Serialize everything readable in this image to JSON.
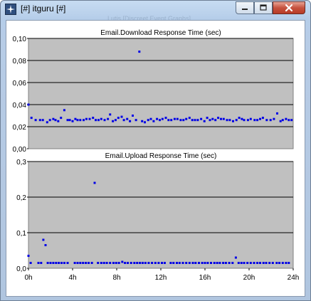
{
  "window": {
    "title": "[#] itguru [#]",
    "ghost_title": "Lutis [Discreet Event Graphs]"
  },
  "icons": {
    "app": "network-star-icon",
    "minimize": "minimize-icon",
    "maximize": "maximize-icon",
    "close": "close-icon"
  },
  "colors": {
    "plot_bg": "#c0c0c0",
    "marker": "#0000e6",
    "grid": "#000000"
  },
  "chart_data": [
    {
      "type": "scatter",
      "title": "Email.Download Response Time (sec)",
      "xlim": [
        0,
        24
      ],
      "ylim": [
        0,
        0.1
      ],
      "yticks": [
        0.0,
        0.02,
        0.04,
        0.06,
        0.08,
        0.1
      ],
      "ytick_labels": [
        "0,00",
        "0,02",
        "0,04",
        "0,06",
        "0,08",
        "0,10"
      ],
      "grid": true,
      "series": [
        {
          "x": [
            0.0,
            0.27,
            0.65,
            1.05,
            1.3,
            1.7,
            1.95,
            2.25,
            2.45,
            2.7,
            2.95,
            3.25,
            3.55,
            3.75,
            4.0,
            4.25,
            4.45,
            4.7,
            5.0,
            5.25,
            5.55,
            5.85,
            6.1,
            6.35,
            6.6,
            6.9,
            7.2,
            7.4,
            7.65,
            7.9,
            8.15,
            8.45,
            8.65,
            8.95,
            9.2,
            9.45,
            9.75,
            10.05,
            10.3,
            10.55,
            10.85,
            11.1,
            11.35,
            11.65,
            11.9,
            12.15,
            12.45,
            12.7,
            12.95,
            13.25,
            13.5,
            13.8,
            14.05,
            14.3,
            14.6,
            14.85,
            15.1,
            15.35,
            15.65,
            15.95,
            16.2,
            16.45,
            16.7,
            16.95,
            17.2,
            17.45,
            17.7,
            18.0,
            18.25,
            18.55,
            18.85,
            19.1,
            19.35,
            19.55,
            19.9,
            20.15,
            20.5,
            20.75,
            21.0,
            21.25,
            21.6,
            21.95,
            22.25,
            22.55,
            22.85,
            23.05,
            23.35,
            23.6,
            23.85
          ],
          "y": [
            0.04,
            0.028,
            0.026,
            0.026,
            0.026,
            0.024,
            0.026,
            0.027,
            0.026,
            0.025,
            0.028,
            0.035,
            0.026,
            0.026,
            0.025,
            0.027,
            0.026,
            0.026,
            0.026,
            0.027,
            0.027,
            0.028,
            0.026,
            0.026,
            0.027,
            0.026,
            0.027,
            0.031,
            0.025,
            0.026,
            0.028,
            0.029,
            0.026,
            0.027,
            0.025,
            0.03,
            0.026,
            0.088,
            0.025,
            0.024,
            0.026,
            0.027,
            0.025,
            0.027,
            0.026,
            0.027,
            0.028,
            0.026,
            0.026,
            0.027,
            0.027,
            0.026,
            0.026,
            0.027,
            0.028,
            0.026,
            0.026,
            0.026,
            0.027,
            0.025,
            0.028,
            0.026,
            0.027,
            0.026,
            0.028,
            0.027,
            0.027,
            0.026,
            0.026,
            0.025,
            0.026,
            0.028,
            0.027,
            0.026,
            0.026,
            0.027,
            0.026,
            0.026,
            0.027,
            0.028,
            0.026,
            0.026,
            0.027,
            0.032,
            0.025,
            0.026,
            0.027,
            0.026,
            0.026
          ]
        }
      ]
    },
    {
      "type": "scatter",
      "title": "Email.Upload Response Time (sec)",
      "xlim": [
        0,
        24
      ],
      "ylim": [
        0,
        0.3
      ],
      "yticks": [
        0.0,
        0.1,
        0.2,
        0.3
      ],
      "ytick_labels": [
        "0,0",
        "0,1",
        "0,2",
        "0,3"
      ],
      "xticks": [
        0,
        4,
        8,
        12,
        16,
        20,
        24
      ],
      "xtick_labels": [
        "0h",
        "4h",
        "8h",
        "12h",
        "16h",
        "20h",
        "24h"
      ],
      "grid": true,
      "series": [
        {
          "x": [
            0.0,
            0.2,
            0.9,
            1.15,
            1.35,
            1.55,
            1.75,
            2.0,
            2.25,
            2.5,
            2.75,
            3.0,
            3.25,
            3.55,
            4.2,
            4.45,
            4.7,
            4.95,
            5.2,
            5.45,
            5.75,
            6.0,
            6.3,
            6.6,
            6.85,
            7.1,
            7.4,
            7.7,
            7.95,
            8.2,
            8.5,
            8.75,
            9.0,
            9.3,
            9.6,
            9.85,
            10.1,
            10.35,
            10.6,
            10.9,
            11.2,
            11.5,
            11.8,
            12.1,
            12.35,
            12.9,
            13.15,
            13.45,
            13.7,
            14.0,
            14.3,
            14.6,
            14.9,
            15.15,
            15.45,
            15.75,
            16.0,
            16.25,
            16.55,
            16.85,
            17.1,
            17.35,
            17.65,
            17.9,
            18.2,
            18.5,
            18.8,
            19.05,
            19.3,
            19.55,
            19.85,
            20.15,
            20.45,
            20.75,
            21.0,
            21.3,
            21.55,
            21.85,
            22.15,
            22.5,
            22.75,
            23.05,
            23.35,
            23.6
          ],
          "y": [
            0.035,
            0.015,
            0.015,
            0.015,
            0.08,
            0.065,
            0.015,
            0.015,
            0.015,
            0.015,
            0.015,
            0.015,
            0.015,
            0.015,
            0.015,
            0.015,
            0.015,
            0.015,
            0.015,
            0.015,
            0.015,
            0.24,
            0.015,
            0.015,
            0.015,
            0.015,
            0.015,
            0.015,
            0.015,
            0.015,
            0.018,
            0.015,
            0.015,
            0.015,
            0.015,
            0.015,
            0.015,
            0.015,
            0.015,
            0.015,
            0.015,
            0.015,
            0.015,
            0.015,
            0.015,
            0.015,
            0.015,
            0.015,
            0.015,
            0.015,
            0.015,
            0.015,
            0.015,
            0.015,
            0.015,
            0.015,
            0.015,
            0.015,
            0.015,
            0.015,
            0.015,
            0.015,
            0.015,
            0.015,
            0.015,
            0.015,
            0.03,
            0.015,
            0.015,
            0.015,
            0.015,
            0.015,
            0.015,
            0.015,
            0.015,
            0.015,
            0.015,
            0.015,
            0.015,
            0.015,
            0.015,
            0.015,
            0.015,
            0.015
          ]
        }
      ]
    }
  ]
}
